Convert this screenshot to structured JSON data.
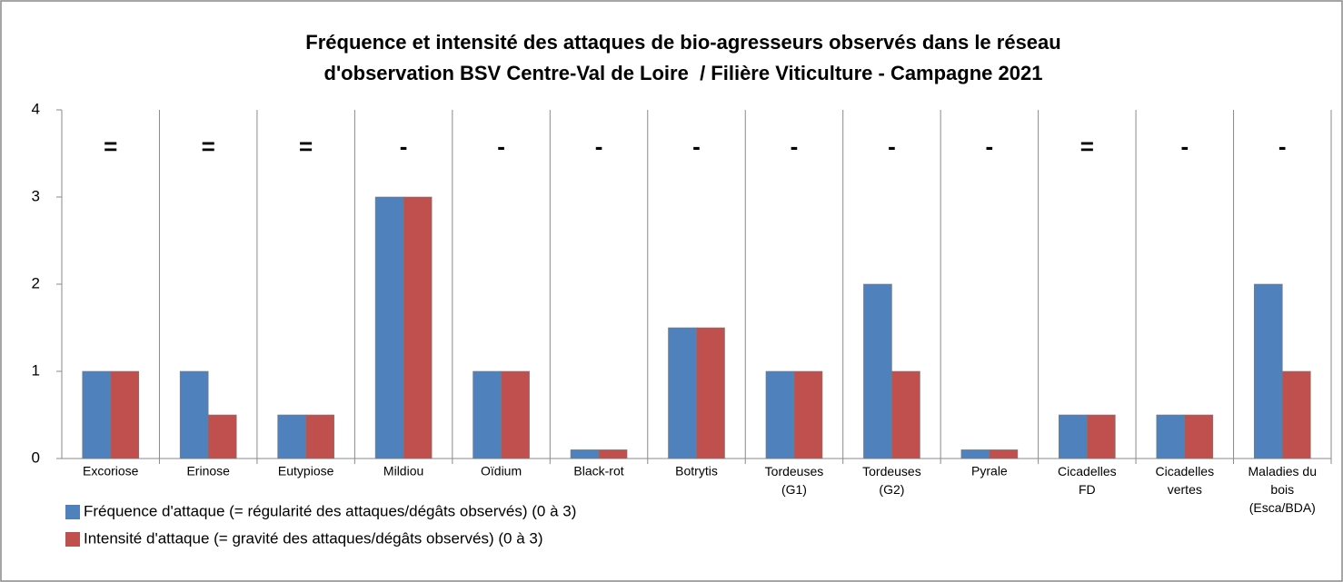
{
  "chart_data": {
    "type": "bar",
    "title": "Fréquence et intensité des attaques de bio-agresseurs observés dans le réseau\nd'observation BSV Centre-Val de Loire  / Filière Viticulture - Campagne 2021",
    "categories": [
      "Excoriose",
      "Erinose",
      "Eutypiose",
      "Mildiou",
      "Oïdium",
      "Black-rot",
      "Botrytis",
      "Tordeuses\n(G1)",
      "Tordeuses\n(G2)",
      "Pyrale",
      "Cicadelles\nFD",
      "Cicadelles\nvertes",
      "Maladies du\nbois\n(Esca/BDA)"
    ],
    "annotations": [
      "=",
      "=",
      "=",
      "-",
      "-",
      "-",
      "-",
      "-",
      "-",
      "-",
      "=",
      "-",
      "-"
    ],
    "series": [
      {
        "name": "Fréquence d'attaque (= régularité des attaques/dégâts observés) (0 à 3)",
        "color": "#4f81bd",
        "values": [
          1,
          1,
          0.5,
          3,
          1,
          0.1,
          1.5,
          1,
          2,
          0.1,
          0.5,
          0.5,
          2
        ]
      },
      {
        "name": "Intensité d'attaque (= gravité des attaques/dégâts observés) (0 à 3)",
        "color": "#c0504d",
        "values": [
          1,
          0.5,
          0.5,
          3,
          1,
          0.1,
          1.5,
          1,
          1,
          0.1,
          0.5,
          0.5,
          1
        ]
      }
    ],
    "ylim": [
      0,
      4
    ],
    "yticks": [
      0,
      1,
      2,
      3,
      4
    ],
    "legend": "bottom-left"
  }
}
